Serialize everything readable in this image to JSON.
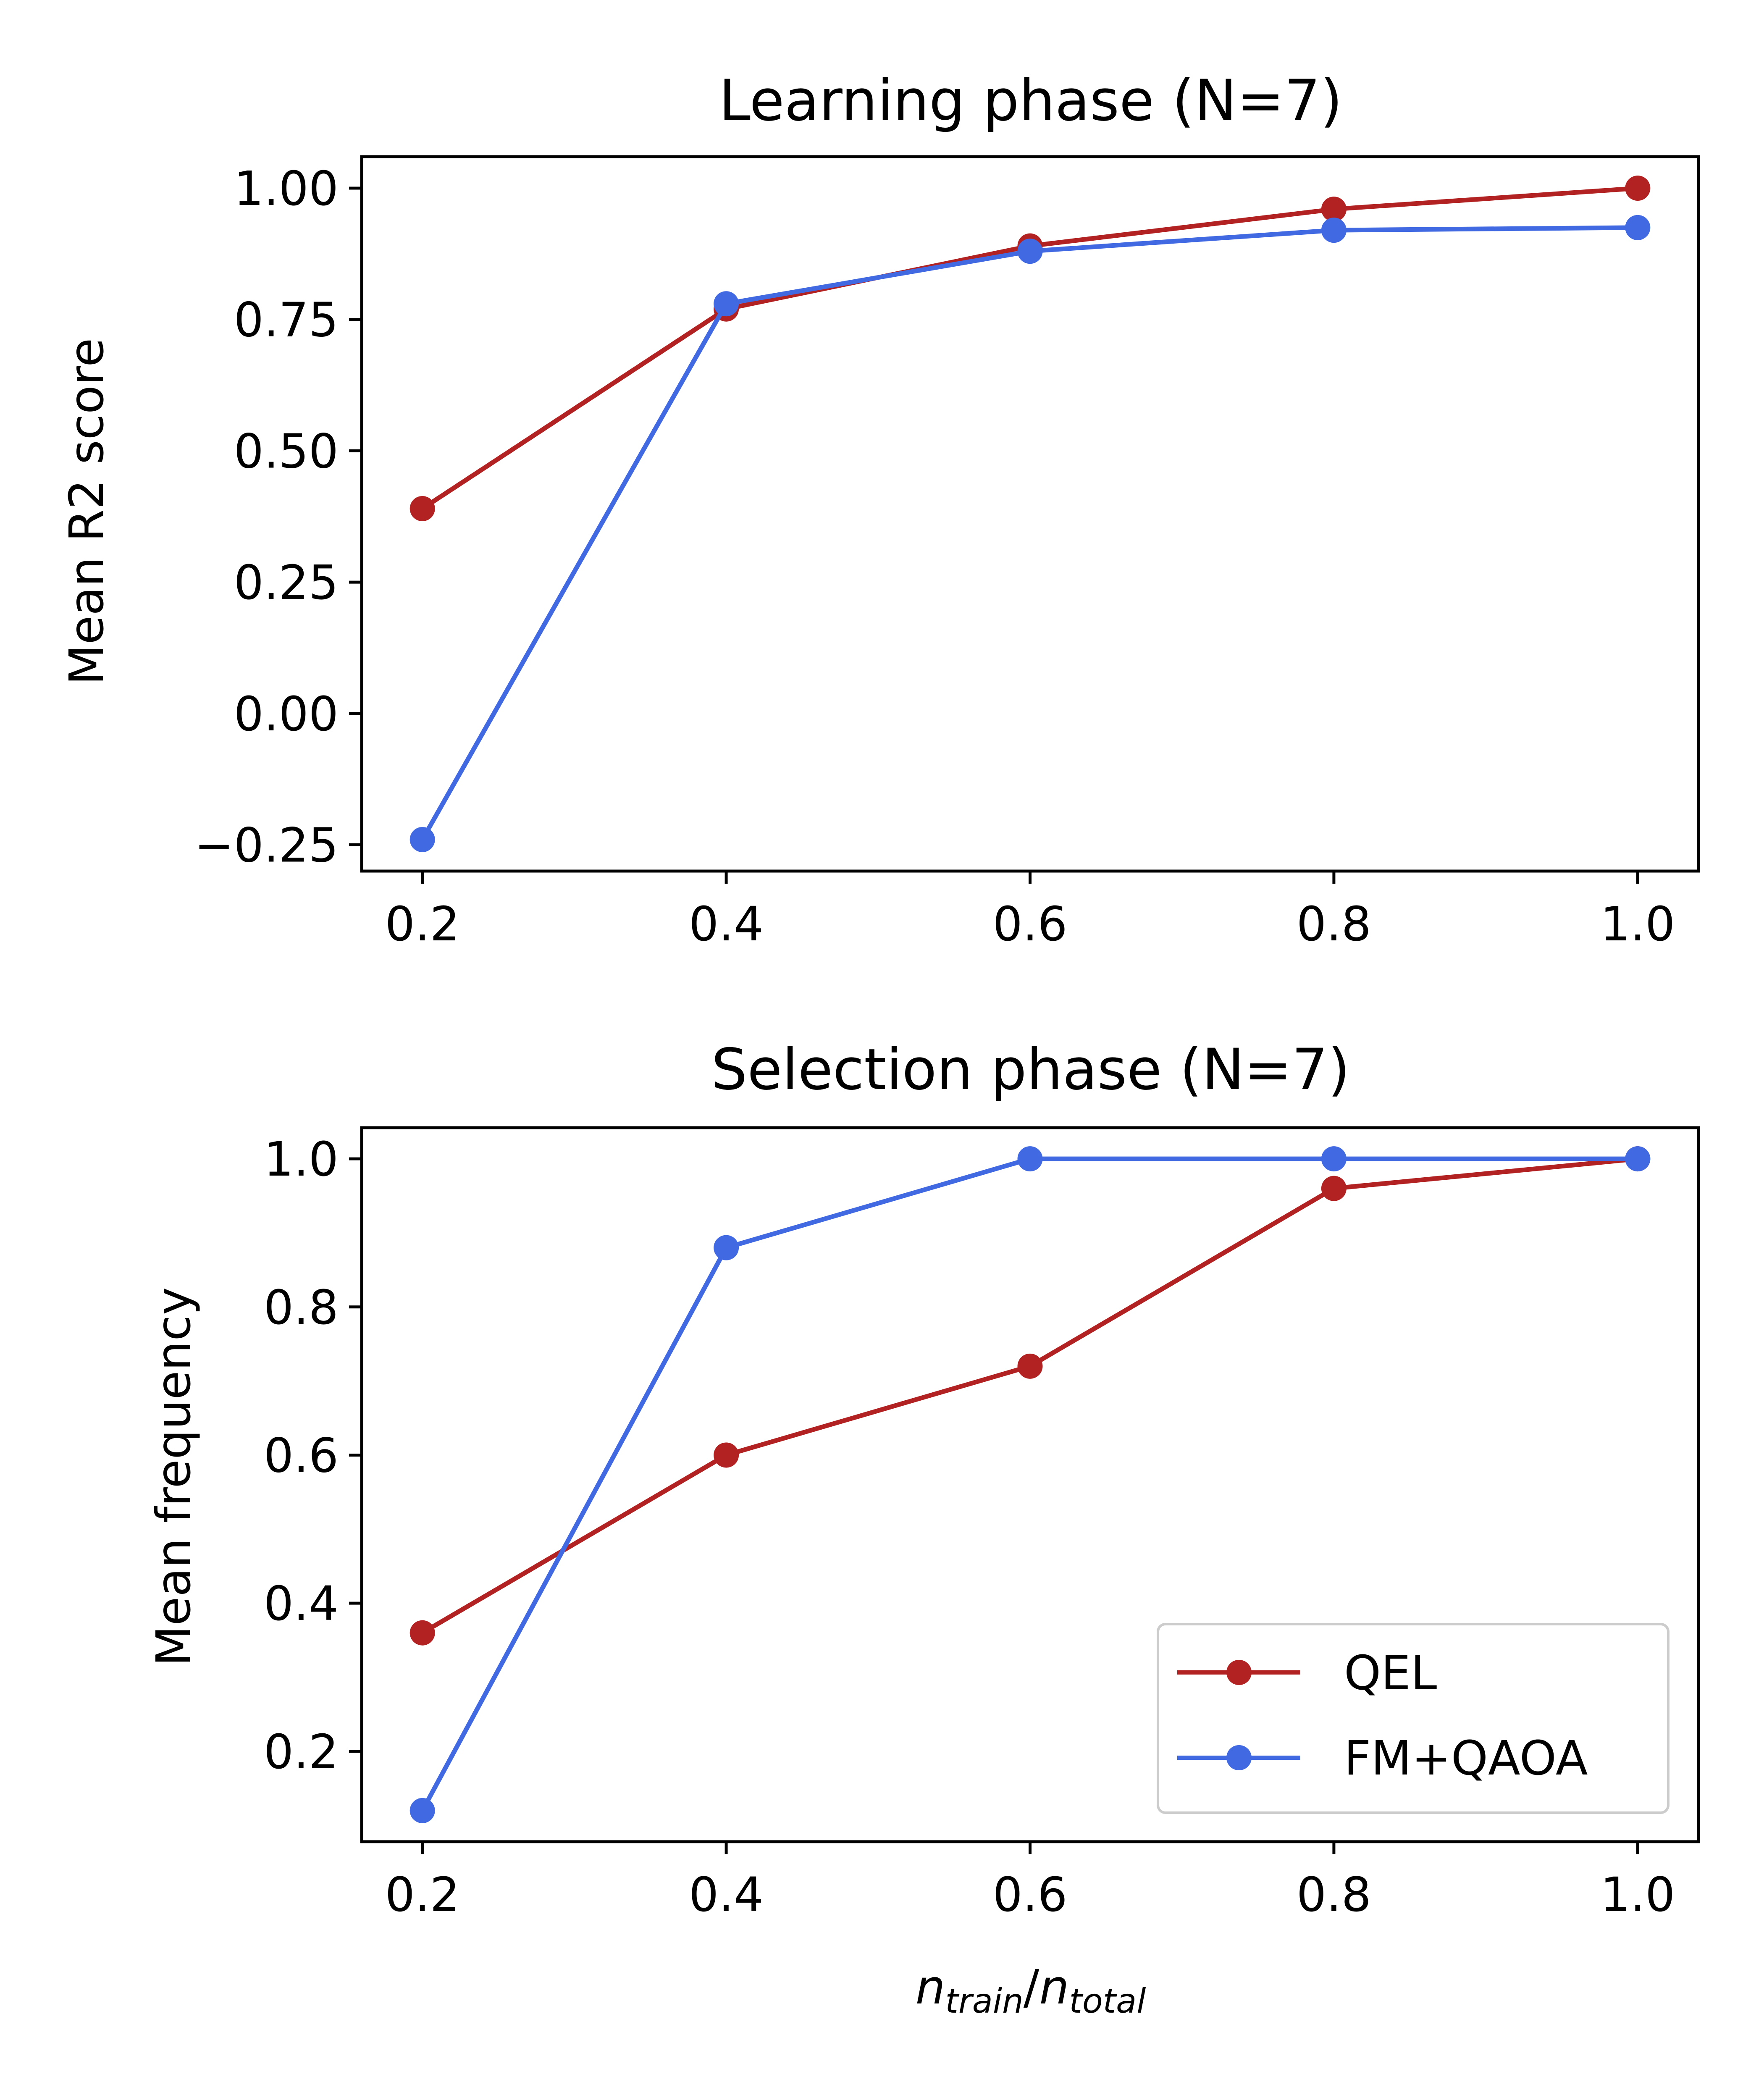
{
  "chart_data": [
    {
      "type": "line",
      "title": "Learning phase (N=7)",
      "xlabel": "",
      "ylabel": "Mean R2 score",
      "x": [
        0.2,
        0.4,
        0.6,
        0.8,
        1.0
      ],
      "series": [
        {
          "name": "QEL",
          "color": "#b22222",
          "values": [
            0.39,
            0.77,
            0.89,
            0.96,
            1.0
          ]
        },
        {
          "name": "FM+QAOA",
          "color": "#4169e1",
          "values": [
            -0.24,
            0.78,
            0.88,
            0.92,
            0.925
          ]
        }
      ],
      "xticks": [
        "0.2",
        "0.4",
        "0.6",
        "0.8",
        "1.0"
      ],
      "yticks": [
        "−0.25",
        "0.00",
        "0.25",
        "0.50",
        "0.75",
        "1.00"
      ],
      "ytick_values": [
        -0.25,
        0,
        0.25,
        0.5,
        0.75,
        1.0
      ],
      "xlim": [
        0.16,
        1.04
      ],
      "ylim": [
        -0.3,
        1.06
      ],
      "grid": false,
      "legend": "none"
    },
    {
      "type": "line",
      "title": "Selection phase (N=7)",
      "xlabel": "n_train/n_total",
      "xlabel_parts": {
        "base1": "n",
        "sub1": "train",
        "sep": "/",
        "base2": "n",
        "sub2": "total"
      },
      "ylabel": "Mean frequency",
      "x": [
        0.2,
        0.4,
        0.6,
        0.8,
        1.0
      ],
      "series": [
        {
          "name": "QEL",
          "color": "#b22222",
          "values": [
            0.36,
            0.6,
            0.72,
            0.96,
            1.0
          ]
        },
        {
          "name": "FM+QAOA",
          "color": "#4169e1",
          "values": [
            0.12,
            0.88,
            1.0,
            1.0,
            1.0
          ]
        }
      ],
      "xticks": [
        "0.2",
        "0.4",
        "0.6",
        "0.8",
        "1.0"
      ],
      "yticks": [
        "0.2",
        "0.4",
        "0.6",
        "0.8",
        "1.0"
      ],
      "ytick_values": [
        0.2,
        0.4,
        0.6,
        0.8,
        1.0
      ],
      "xlim": [
        0.16,
        1.04
      ],
      "ylim": [
        0.078,
        1.042
      ],
      "grid": false,
      "legend": "lower-right"
    }
  ]
}
